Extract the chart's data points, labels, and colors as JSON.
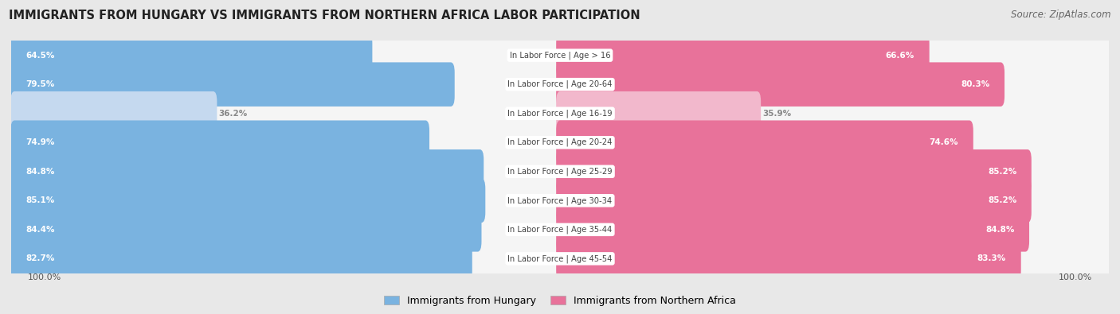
{
  "title": "IMMIGRANTS FROM HUNGARY VS IMMIGRANTS FROM NORTHERN AFRICA LABOR PARTICIPATION",
  "source": "Source: ZipAtlas.com",
  "categories": [
    "In Labor Force | Age > 16",
    "In Labor Force | Age 20-64",
    "In Labor Force | Age 16-19",
    "In Labor Force | Age 20-24",
    "In Labor Force | Age 25-29",
    "In Labor Force | Age 30-34",
    "In Labor Force | Age 35-44",
    "In Labor Force | Age 45-54"
  ],
  "hungary_values": [
    64.5,
    79.5,
    36.2,
    74.9,
    84.8,
    85.1,
    84.4,
    82.7
  ],
  "africa_values": [
    66.6,
    80.3,
    35.9,
    74.6,
    85.2,
    85.2,
    84.8,
    83.3
  ],
  "hungary_color": "#7ab3e0",
  "hungary_color_light": "#c5d9ef",
  "africa_color": "#e8729a",
  "africa_color_light": "#f2b8cc",
  "row_bg_color": "#e8e8e8",
  "row_inner_color": "#f5f5f5",
  "legend_hungary": "Immigrants from Hungary",
  "legend_africa": "Immigrants from Northern Africa",
  "max_val": 100.0,
  "xlim_label": "100.0%"
}
